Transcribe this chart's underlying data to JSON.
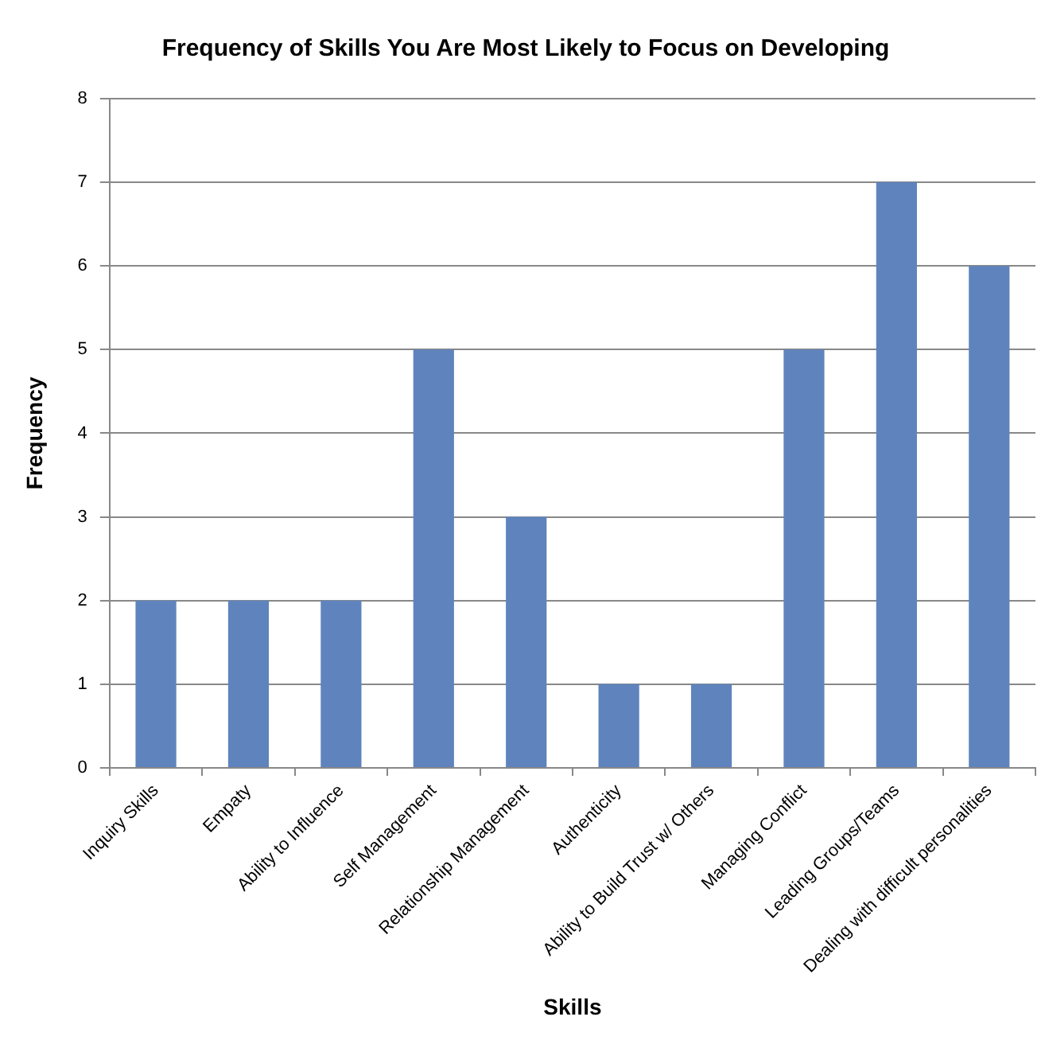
{
  "chart_data": {
    "type": "bar",
    "title": "Frequency of Skills You Are Most Likely to Focus on Developing",
    "xlabel": "Skills",
    "ylabel": "Frequency",
    "categories": [
      "Inquiry Skills",
      "Empaty",
      "Ability to Influence",
      "Self Management",
      "Relationship Management",
      "Authenticity",
      "Ability to Build Trust w/ Others",
      "Managing Conflict",
      "Leading Groups/Teams",
      "Dealing with difficult personalities"
    ],
    "values": [
      2,
      2,
      2,
      5,
      3,
      1,
      1,
      5,
      7,
      6
    ],
    "color": "#5f84bd",
    "ylim": [
      0,
      8
    ],
    "yticks": [
      0,
      1,
      2,
      3,
      4,
      5,
      6,
      7,
      8
    ],
    "grid": "y",
    "legend": false
  }
}
